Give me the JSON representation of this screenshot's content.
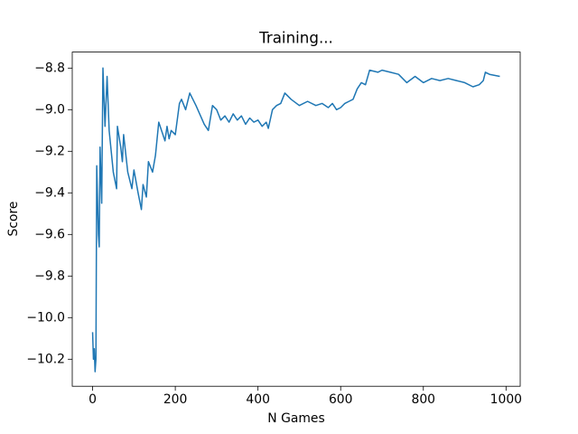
{
  "chart_data": {
    "type": "line",
    "title": "Training...",
    "x_label": "N Games",
    "y_label": "Score",
    "series": [
      {
        "color": "#1f77b4",
        "x": [
          0,
          2,
          4,
          6,
          8,
          10,
          14,
          16,
          18,
          22,
          25,
          30,
          35,
          40,
          50,
          58,
          60,
          68,
          72,
          75,
          85,
          95,
          100,
          110,
          118,
          122,
          130,
          135,
          145,
          152,
          160,
          170,
          175,
          180,
          185,
          190,
          200,
          210,
          215,
          225,
          235,
          250,
          270,
          280,
          290,
          300,
          310,
          320,
          330,
          340,
          350,
          360,
          370,
          380,
          390,
          400,
          410,
          420,
          425,
          435,
          445,
          455,
          465,
          480,
          500,
          520,
          540,
          555,
          570,
          580,
          590,
          600,
          610,
          620,
          630,
          640,
          650,
          660,
          670,
          690,
          700,
          720,
          740,
          760,
          780,
          800,
          820,
          840,
          860,
          880,
          900,
          920,
          935,
          945,
          950,
          960,
          985
        ],
        "values": [
          -10.07,
          -10.2,
          -10.15,
          -10.26,
          -10.2,
          -9.27,
          -9.6,
          -9.66,
          -9.18,
          -9.45,
          -8.8,
          -9.08,
          -8.84,
          -9.1,
          -9.3,
          -9.38,
          -9.08,
          -9.18,
          -9.25,
          -9.12,
          -9.3,
          -9.38,
          -9.29,
          -9.4,
          -9.48,
          -9.36,
          -9.42,
          -9.25,
          -9.3,
          -9.22,
          -9.06,
          -9.12,
          -9.15,
          -9.08,
          -9.14,
          -9.1,
          -9.12,
          -8.97,
          -8.95,
          -9.0,
          -8.92,
          -8.98,
          -9.07,
          -9.1,
          -8.98,
          -9.0,
          -9.05,
          -9.03,
          -9.06,
          -9.02,
          -9.05,
          -9.03,
          -9.07,
          -9.04,
          -9.06,
          -9.05,
          -9.08,
          -9.06,
          -9.09,
          -9.0,
          -8.98,
          -8.97,
          -8.92,
          -8.95,
          -8.98,
          -8.96,
          -8.98,
          -8.97,
          -8.99,
          -8.97,
          -9.0,
          -8.99,
          -8.97,
          -8.96,
          -8.95,
          -8.9,
          -8.87,
          -8.88,
          -8.81,
          -8.82,
          -8.81,
          -8.82,
          -8.83,
          -8.87,
          -8.84,
          -8.87,
          -8.85,
          -8.86,
          -8.85,
          -8.86,
          -8.87,
          -8.89,
          -8.88,
          -8.86,
          -8.82,
          -8.83,
          -8.84
        ]
      }
    ],
    "xlim": [
      -49.25,
      1034.25
    ],
    "ylim": [
      -10.33,
      -8.723
    ],
    "xticks": [
      0,
      200,
      400,
      600,
      800,
      1000
    ],
    "yticks": [
      {
        "value": -10.2,
        "label": "−10.2"
      },
      {
        "value": -10.0,
        "label": "−10.0"
      },
      {
        "value": -9.8,
        "label": "−9.8"
      },
      {
        "value": -9.6,
        "label": "−9.6"
      },
      {
        "value": -9.4,
        "label": "−9.4"
      },
      {
        "value": -9.2,
        "label": "−9.2"
      },
      {
        "value": -9.0,
        "label": "−9.0"
      },
      {
        "value": -8.8,
        "label": "−8.8"
      }
    ]
  }
}
